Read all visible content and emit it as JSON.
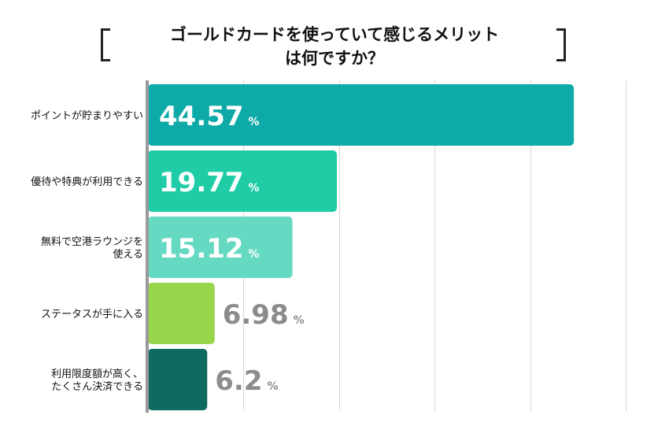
{
  "chart_data": {
    "type": "bar",
    "orientation": "horizontal",
    "title_lines": [
      "ゴールドカードを使っていて感じるメリット",
      "は何ですか？"
    ],
    "categories": [
      [
        "ポイントが貯まりやすい"
      ],
      [
        "優待や特典が利用できる"
      ],
      [
        "無料で空港ラウンジを",
        "使える"
      ],
      [
        "ステータスが手に入る"
      ],
      [
        "利用限度額が高く、",
        "たくさん決済できる"
      ]
    ],
    "values": [
      44.57,
      19.77,
      15.12,
      6.98,
      6.2
    ],
    "value_labels": [
      "44.57",
      "19.77",
      "15.12",
      "6.98",
      "6.2"
    ],
    "unit": "%",
    "bar_colors": [
      "#0eaaa7",
      "#1fcca6",
      "#66d9c3",
      "#98d74b",
      "#0e6b62"
    ],
    "value_label_colors": [
      "#ffffff",
      "#ffffff",
      "#ffffff",
      "#8c8c8c",
      "#8c8c8c"
    ],
    "value_label_inside": [
      true,
      true,
      true,
      false,
      false
    ],
    "xlim": [
      0,
      50
    ],
    "grid": true,
    "xlabel": "",
    "ylabel": ""
  }
}
